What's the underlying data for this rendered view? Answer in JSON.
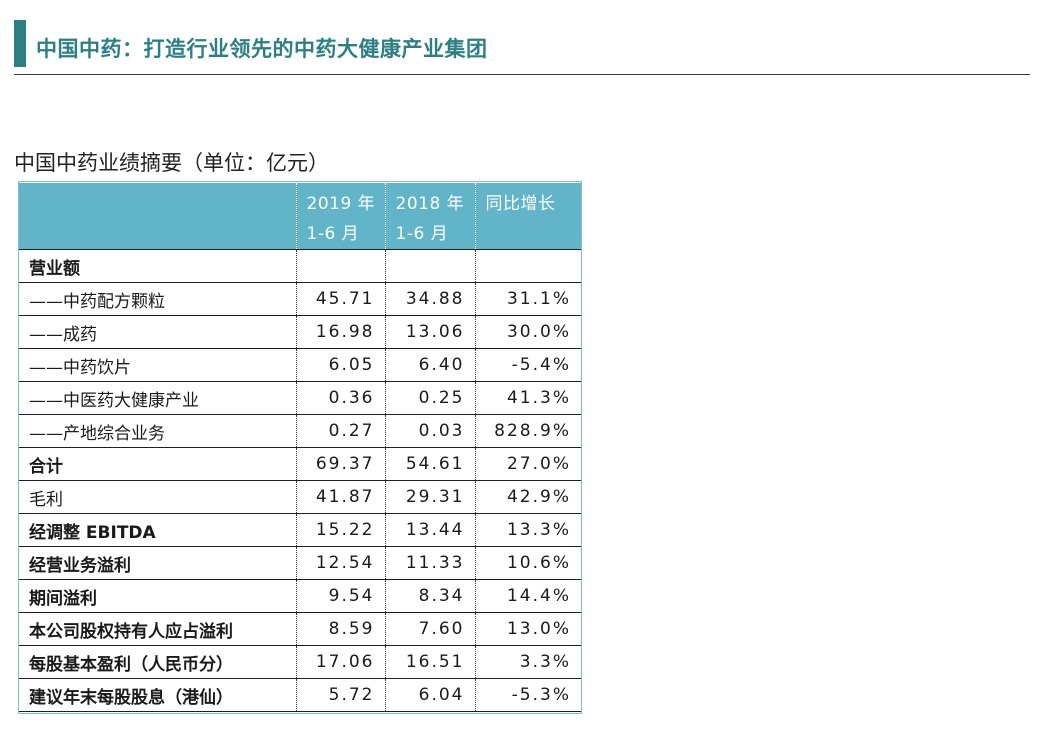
{
  "header": {
    "title": "中国中药：打造行业领先的中药大健康产业集团"
  },
  "caption": "中国中药业绩摘要（单位：亿元）",
  "colors": {
    "accent": "#2e7f84",
    "table_header": "#62b4c9"
  },
  "table": {
    "columns": [
      {
        "line1": "",
        "line2": ""
      },
      {
        "line1": "2019 年",
        "line2": "1-6 月"
      },
      {
        "line1": "2018 年",
        "line2": "1-6 月"
      },
      {
        "line1": "同比增长",
        "line2": ""
      }
    ],
    "rows": [
      {
        "label": "营业额",
        "v2019": "",
        "v2018": "",
        "yoy": "",
        "bold": true
      },
      {
        "label": "——中药配方颗粒",
        "v2019": "45.71",
        "v2018": "34.88",
        "yoy": "31.1%",
        "bold": false
      },
      {
        "label": "——成药",
        "v2019": "16.98",
        "v2018": "13.06",
        "yoy": "30.0%",
        "bold": false
      },
      {
        "label": "——中药饮片",
        "v2019": "6.05",
        "v2018": "6.40",
        "yoy": "-5.4%",
        "bold": false
      },
      {
        "label": "——中医药大健康产业",
        "v2019": "0.36",
        "v2018": "0.25",
        "yoy": "41.3%",
        "bold": false
      },
      {
        "label": "——产地综合业务",
        "v2019": "0.27",
        "v2018": "0.03",
        "yoy": "828.9%",
        "bold": false
      },
      {
        "label": "合计",
        "v2019": "69.37",
        "v2018": "54.61",
        "yoy": "27.0%",
        "bold": true
      },
      {
        "label": "毛利",
        "v2019": "41.87",
        "v2018": "29.31",
        "yoy": "42.9%",
        "bold": false
      },
      {
        "label": "经调整 EBITDA",
        "v2019": "15.22",
        "v2018": "13.44",
        "yoy": "13.3%",
        "bold": true
      },
      {
        "label": "经营业务溢利",
        "v2019": "12.54",
        "v2018": "11.33",
        "yoy": "10.6%",
        "bold": true
      },
      {
        "label": "期间溢利",
        "v2019": "9.54",
        "v2018": "8.34",
        "yoy": "14.4%",
        "bold": true
      },
      {
        "label": "本公司股权持有人应占溢利",
        "v2019": "8.59",
        "v2018": "7.60",
        "yoy": "13.0%",
        "bold": true
      },
      {
        "label": "每股基本盈利（人民币分）",
        "v2019": "17.06",
        "v2018": "16.51",
        "yoy": "3.3%",
        "bold": true
      },
      {
        "label": "建议年末每股股息（港仙）",
        "v2019": "5.72",
        "v2018": "6.04",
        "yoy": "-5.3%",
        "bold": true
      }
    ]
  }
}
